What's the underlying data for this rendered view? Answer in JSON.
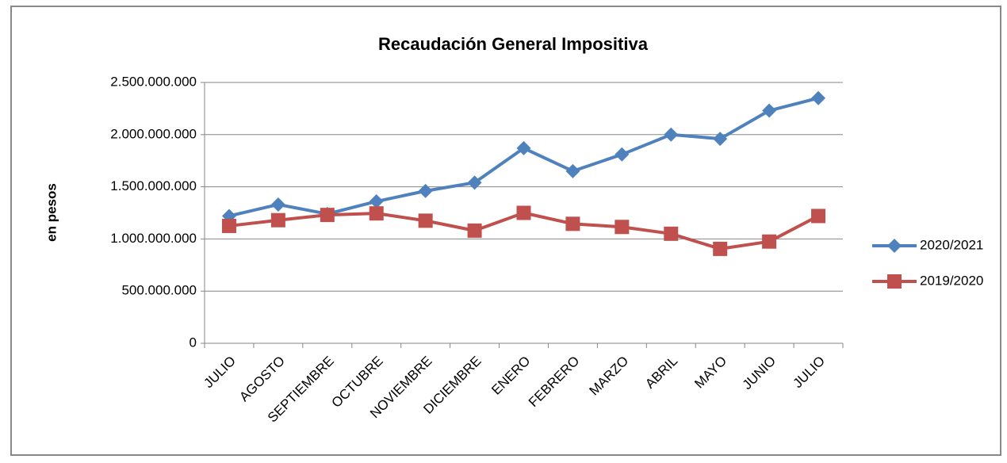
{
  "chart_data": {
    "type": "line",
    "title": "Recaudación General Impositiva",
    "y_label": "en pesos",
    "categories": [
      "JULIO",
      "AGOSTO",
      "SEPTIEMBRE",
      "OCTUBRE",
      "NOVIEMBRE",
      "DICIEMBRE",
      "ENERO",
      "FEBRERO",
      "MARZO",
      "ABRIL",
      "MAYO",
      "JUNIO",
      "JULIO"
    ],
    "series": [
      {
        "name": "2020/2021",
        "color": "#4f81bd",
        "marker": "diamond",
        "values": [
          1220000000,
          1330000000,
          1240000000,
          1360000000,
          1460000000,
          1540000000,
          1870000000,
          1650000000,
          1810000000,
          2000000000,
          1960000000,
          2230000000,
          2350000000
        ]
      },
      {
        "name": "2019/2020",
        "color": "#c0504d",
        "marker": "square",
        "values": [
          1125000000,
          1180000000,
          1230000000,
          1245000000,
          1175000000,
          1080000000,
          1250000000,
          1145000000,
          1115000000,
          1050000000,
          905000000,
          975000000,
          1220000000
        ]
      }
    ],
    "ylim": [
      0,
      2500000000
    ],
    "yticks": [
      0,
      {
        "value": 500000000,
        "label": "500.000.000"
      },
      {
        "value": 1000000000,
        "label": "1.000.000.000"
      },
      {
        "value": 1500000000,
        "label": "1.500.000.000"
      },
      {
        "value": 2000000000,
        "label": "2.000.000.000"
      },
      {
        "value": 2500000000,
        "label": "2.500.000.000"
      }
    ],
    "grid": true,
    "legend": "right"
  }
}
